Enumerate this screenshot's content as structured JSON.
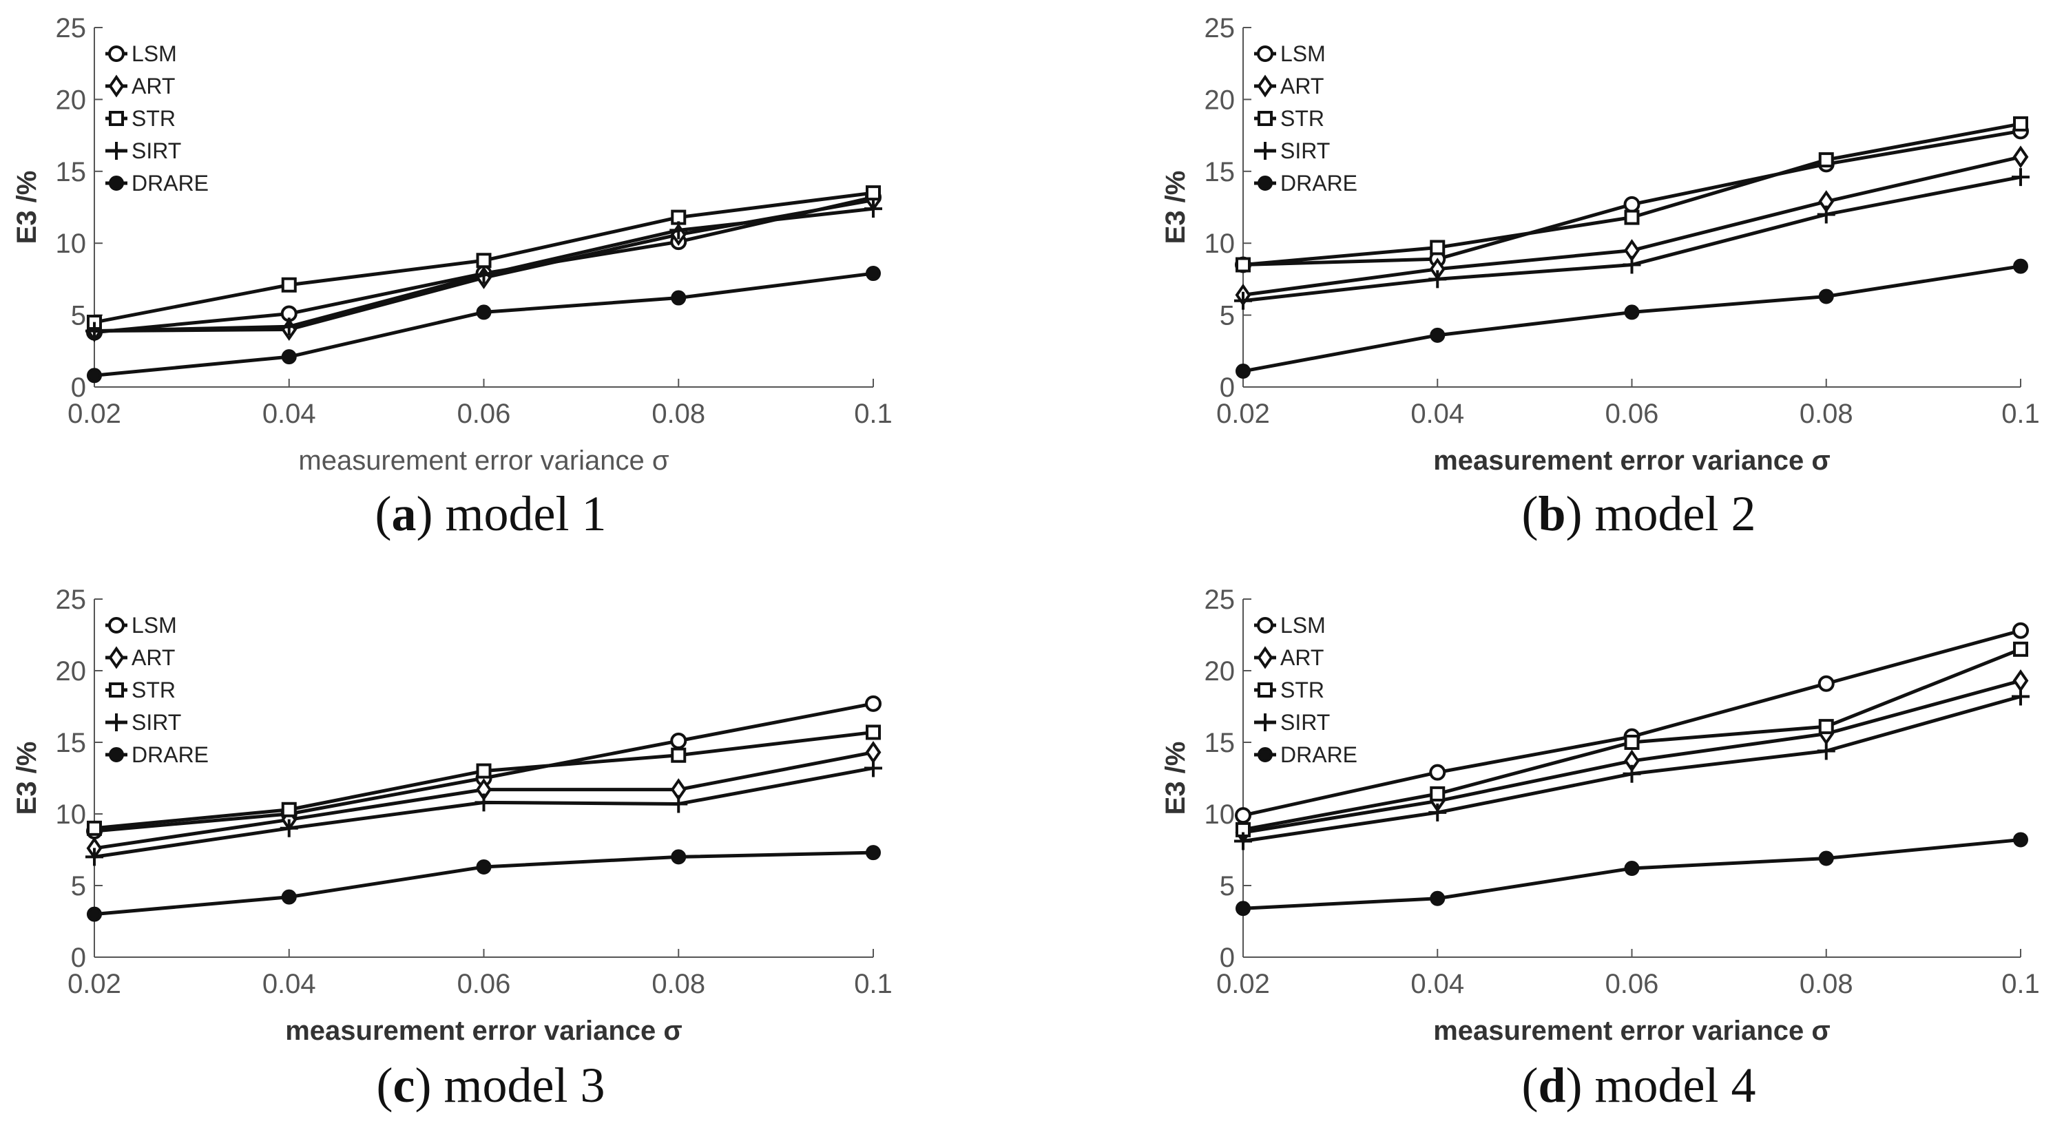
{
  "chart_data": [
    {
      "type": "line",
      "caption_letter": "a",
      "caption_text": "model 1",
      "xlabel": "measurement error variance σ",
      "ylabel": "E3 /%",
      "x": [
        0.02,
        0.04,
        0.06,
        0.08,
        0.1
      ],
      "x_tick_labels": [
        "0.02",
        "0.04",
        "0.06",
        "0.08",
        "0.1"
      ],
      "y_ticks": [
        0,
        5,
        10,
        15,
        20,
        25
      ],
      "xlim": [
        0.02,
        0.1
      ],
      "ylim": [
        0,
        25
      ],
      "series": [
        {
          "name": "LSM",
          "marker": "circle",
          "values": [
            3.8,
            5.1,
            7.9,
            10.1,
            13.2
          ]
        },
        {
          "name": "ART",
          "marker": "diamond",
          "values": [
            3.9,
            4.0,
            7.6,
            10.6,
            13.0
          ]
        },
        {
          "name": "STR",
          "marker": "square",
          "values": [
            4.5,
            7.1,
            8.8,
            11.8,
            13.5
          ]
        },
        {
          "name": "SIRT",
          "marker": "plus",
          "values": [
            3.9,
            4.2,
            7.8,
            10.9,
            12.4
          ]
        },
        {
          "name": "DRARE",
          "marker": "star",
          "values": [
            0.8,
            2.1,
            5.2,
            6.2,
            7.9
          ]
        }
      ]
    },
    {
      "type": "line",
      "caption_letter": "b",
      "caption_text": "model 2",
      "xlabel": "measurement error variance σ",
      "ylabel": "E3 /%",
      "x": [
        0.02,
        0.04,
        0.06,
        0.08,
        0.1
      ],
      "x_tick_labels": [
        "0.02",
        "0.04",
        "0.06",
        "0.08",
        "0.1"
      ],
      "y_ticks": [
        0,
        5,
        10,
        15,
        20,
        25
      ],
      "xlim": [
        0.02,
        0.1
      ],
      "ylim": [
        0,
        25
      ],
      "series": [
        {
          "name": "LSM",
          "marker": "circle",
          "values": [
            8.5,
            8.9,
            12.7,
            15.5,
            17.8
          ]
        },
        {
          "name": "ART",
          "marker": "diamond",
          "values": [
            6.4,
            8.2,
            9.5,
            12.9,
            16.0
          ]
        },
        {
          "name": "STR",
          "marker": "square",
          "values": [
            8.5,
            9.7,
            11.8,
            15.8,
            18.3
          ]
        },
        {
          "name": "SIRT",
          "marker": "plus",
          "values": [
            6.0,
            7.5,
            8.5,
            12.0,
            14.6
          ]
        },
        {
          "name": "DRARE",
          "marker": "star",
          "values": [
            1.1,
            3.6,
            5.2,
            6.3,
            8.4
          ]
        }
      ]
    },
    {
      "type": "line",
      "caption_letter": "c",
      "caption_text": "model 3",
      "xlabel": "measurement error variance σ",
      "ylabel": "E3 /%",
      "x": [
        0.02,
        0.04,
        0.06,
        0.08,
        0.1
      ],
      "x_tick_labels": [
        "0.02",
        "0.04",
        "0.06",
        "0.08",
        "0.1"
      ],
      "y_ticks": [
        0,
        5,
        10,
        15,
        20,
        25
      ],
      "xlim": [
        0.02,
        0.1
      ],
      "ylim": [
        0,
        25
      ],
      "series": [
        {
          "name": "LSM",
          "marker": "circle",
          "values": [
            8.8,
            10.0,
            12.5,
            15.1,
            17.7
          ]
        },
        {
          "name": "ART",
          "marker": "diamond",
          "values": [
            7.6,
            9.6,
            11.7,
            11.7,
            14.3
          ]
        },
        {
          "name": "STR",
          "marker": "square",
          "values": [
            9.0,
            10.3,
            13.0,
            14.1,
            15.7
          ]
        },
        {
          "name": "SIRT",
          "marker": "plus",
          "values": [
            7.0,
            9.0,
            10.8,
            10.7,
            13.2
          ]
        },
        {
          "name": "DRARE",
          "marker": "star",
          "values": [
            3.0,
            4.2,
            6.3,
            7.0,
            7.3
          ]
        }
      ]
    },
    {
      "type": "line",
      "caption_letter": "d",
      "caption_text": "model 4",
      "xlabel": "measurement error variance σ",
      "ylabel": "E3 /%",
      "x": [
        0.02,
        0.04,
        0.06,
        0.08,
        0.1
      ],
      "x_tick_labels": [
        "0.02",
        "0.04",
        "0.06",
        "0.08",
        "0.1"
      ],
      "y_ticks": [
        0,
        5,
        10,
        15,
        20,
        25
      ],
      "xlim": [
        0.02,
        0.1
      ],
      "ylim": [
        0,
        25
      ],
      "series": [
        {
          "name": "LSM",
          "marker": "circle",
          "values": [
            9.9,
            12.9,
            15.4,
            19.1,
            22.8
          ]
        },
        {
          "name": "ART",
          "marker": "diamond",
          "values": [
            8.7,
            10.9,
            13.7,
            15.6,
            19.3
          ]
        },
        {
          "name": "STR",
          "marker": "square",
          "values": [
            8.9,
            11.4,
            15.0,
            16.1,
            21.5
          ]
        },
        {
          "name": "SIRT",
          "marker": "plus",
          "values": [
            8.1,
            10.1,
            12.8,
            14.4,
            18.2
          ]
        },
        {
          "name": "DRARE",
          "marker": "star",
          "values": [
            3.4,
            4.1,
            6.2,
            6.9,
            8.2
          ]
        }
      ]
    }
  ]
}
